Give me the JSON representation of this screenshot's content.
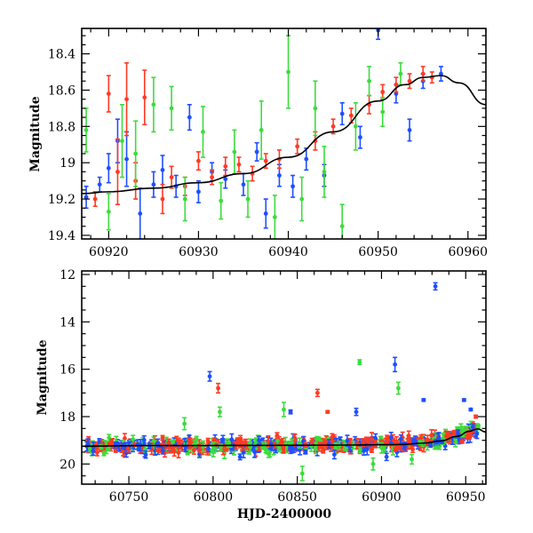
{
  "colors": {
    "blue": "#1f4fff",
    "red": "#ff3a24",
    "green": "#3cdc3c",
    "model": "#000000",
    "frame": "#000000"
  },
  "chart_data": [
    {
      "type": "scatter",
      "panel": "top",
      "title": "",
      "xlabel": "",
      "ylabel": "Magnitude",
      "xlim": [
        60917,
        60962
      ],
      "ylim": [
        19.42,
        18.26
      ],
      "y_inverted": true,
      "xticks": [
        60920,
        60930,
        60940,
        60950,
        60960
      ],
      "xtick_labels": [
        "60920",
        "60930",
        "60940",
        "60950",
        "60960"
      ],
      "yticks": [
        18.4,
        18.6,
        18.8,
        19,
        19.2,
        19.4
      ],
      "ytick_labels": [
        "18.4",
        "18.6",
        "18.8",
        "19",
        "19.2",
        "19.4"
      ],
      "model_curve": {
        "name": "model",
        "x": [
          60917,
          60920,
          60925,
          60930,
          60935,
          60940,
          60945,
          60950,
          60953,
          60955,
          60957,
          60959,
          60962
        ],
        "y": [
          19.17,
          19.16,
          19.14,
          19.11,
          19.06,
          18.97,
          18.83,
          18.66,
          18.57,
          18.53,
          18.52,
          18.56,
          18.68
        ]
      },
      "series": [
        {
          "name": "blue",
          "color": "blue",
          "points": [
            {
              "x": 60917.5,
              "y": 19.19,
              "err": 0.06
            },
            {
              "x": 60919.0,
              "y": 19.12,
              "err": 0.04
            },
            {
              "x": 60920.0,
              "y": 19.03,
              "err": 0.08
            },
            {
              "x": 60921.0,
              "y": 18.88,
              "err": 0.12
            },
            {
              "x": 60922.0,
              "y": 18.98,
              "err": 0.15
            },
            {
              "x": 60923.5,
              "y": 19.28,
              "err": 0.14
            },
            {
              "x": 60925.0,
              "y": 19.12,
              "err": 0.07
            },
            {
              "x": 60926.0,
              "y": 19.04,
              "err": 0.08
            },
            {
              "x": 60927.5,
              "y": 19.13,
              "err": 0.06
            },
            {
              "x": 60929.0,
              "y": 18.75,
              "err": 0.07
            },
            {
              "x": 60930.0,
              "y": 19.16,
              "err": 0.06
            },
            {
              "x": 60931.5,
              "y": 19.05,
              "err": 0.05
            },
            {
              "x": 60933.0,
              "y": 19.09,
              "err": 0.05
            },
            {
              "x": 60935.0,
              "y": 19.12,
              "err": 0.06
            },
            {
              "x": 60936.5,
              "y": 18.94,
              "err": 0.05
            },
            {
              "x": 60937.5,
              "y": 19.28,
              "err": 0.08
            },
            {
              "x": 60939.0,
              "y": 19.07,
              "err": 0.06
            },
            {
              "x": 60940.5,
              "y": 19.13,
              "err": 0.06
            },
            {
              "x": 60942.0,
              "y": 18.98,
              "err": 0.06
            },
            {
              "x": 60944.0,
              "y": 19.07,
              "err": 0.06
            },
            {
              "x": 60946.0,
              "y": 18.73,
              "err": 0.06
            },
            {
              "x": 60948.0,
              "y": 18.86,
              "err": 0.06
            },
            {
              "x": 60950.0,
              "y": 18.27,
              "err": 0.05
            },
            {
              "x": 60952.0,
              "y": 18.62,
              "err": 0.05
            },
            {
              "x": 60953.5,
              "y": 18.82,
              "err": 0.06
            },
            {
              "x": 60955.0,
              "y": 18.55,
              "err": 0.04
            },
            {
              "x": 60957.0,
              "y": 18.51,
              "err": 0.04
            }
          ]
        },
        {
          "name": "red",
          "color": "red",
          "points": [
            {
              "x": 60918.5,
              "y": 19.2,
              "err": 0.04
            },
            {
              "x": 60920.0,
              "y": 18.62,
              "err": 0.1
            },
            {
              "x": 60921.0,
              "y": 19.05,
              "err": 0.18
            },
            {
              "x": 60922.0,
              "y": 18.65,
              "err": 0.2
            },
            {
              "x": 60923.0,
              "y": 19.1,
              "err": 0.1
            },
            {
              "x": 60924.0,
              "y": 18.64,
              "err": 0.15
            },
            {
              "x": 60926.0,
              "y": 19.2,
              "err": 0.08
            },
            {
              "x": 60927.0,
              "y": 19.08,
              "err": 0.06
            },
            {
              "x": 60928.5,
              "y": 19.13,
              "err": 0.05
            },
            {
              "x": 60930.0,
              "y": 18.99,
              "err": 0.05
            },
            {
              "x": 60931.5,
              "y": 19.08,
              "err": 0.04
            },
            {
              "x": 60933.0,
              "y": 19.02,
              "err": 0.05
            },
            {
              "x": 60934.5,
              "y": 19.01,
              "err": 0.04
            },
            {
              "x": 60936.0,
              "y": 19.06,
              "err": 0.04
            },
            {
              "x": 60937.5,
              "y": 18.99,
              "err": 0.04
            },
            {
              "x": 60939.0,
              "y": 18.98,
              "err": 0.05
            },
            {
              "x": 60941.0,
              "y": 18.91,
              "err": 0.04
            },
            {
              "x": 60943.0,
              "y": 18.88,
              "err": 0.05
            },
            {
              "x": 60945.0,
              "y": 18.8,
              "err": 0.04
            },
            {
              "x": 60947.0,
              "y": 18.74,
              "err": 0.04
            },
            {
              "x": 60949.0,
              "y": 18.68,
              "err": 0.05
            },
            {
              "x": 60950.5,
              "y": 18.61,
              "err": 0.04
            },
            {
              "x": 60952.0,
              "y": 18.57,
              "err": 0.04
            },
            {
              "x": 60953.5,
              "y": 18.55,
              "err": 0.04
            },
            {
              "x": 60955.0,
              "y": 18.51,
              "err": 0.04
            },
            {
              "x": 60956.0,
              "y": 18.53,
              "err": 0.03
            }
          ]
        },
        {
          "name": "green",
          "color": "green",
          "points": [
            {
              "x": 60917.5,
              "y": 18.82,
              "err": 0.12
            },
            {
              "x": 60920.0,
              "y": 19.27,
              "err": 0.1
            },
            {
              "x": 60921.5,
              "y": 18.88,
              "err": 0.2
            },
            {
              "x": 60923.0,
              "y": 18.95,
              "err": 0.18
            },
            {
              "x": 60925.0,
              "y": 18.68,
              "err": 0.15
            },
            {
              "x": 60927.0,
              "y": 18.7,
              "err": 0.12
            },
            {
              "x": 60928.5,
              "y": 19.2,
              "err": 0.12
            },
            {
              "x": 60930.5,
              "y": 18.83,
              "err": 0.14
            },
            {
              "x": 60932.5,
              "y": 19.21,
              "err": 0.1
            },
            {
              "x": 60934.0,
              "y": 18.94,
              "err": 0.12
            },
            {
              "x": 60935.5,
              "y": 19.2,
              "err": 0.1
            },
            {
              "x": 60937.0,
              "y": 18.82,
              "err": 0.16
            },
            {
              "x": 60938.5,
              "y": 19.3,
              "err": 0.12
            },
            {
              "x": 60940.0,
              "y": 18.5,
              "err": 0.2
            },
            {
              "x": 60941.5,
              "y": 19.2,
              "err": 0.12
            },
            {
              "x": 60943.0,
              "y": 18.7,
              "err": 0.15
            },
            {
              "x": 60944.0,
              "y": 19.05,
              "err": 0.14
            },
            {
              "x": 60946.0,
              "y": 19.35,
              "err": 0.12
            },
            {
              "x": 60947.5,
              "y": 18.8,
              "err": 0.13
            },
            {
              "x": 60949.0,
              "y": 18.55,
              "err": 0.08
            },
            {
              "x": 60950.5,
              "y": 18.72,
              "err": 0.08
            },
            {
              "x": 60952.5,
              "y": 18.51,
              "err": 0.06
            }
          ]
        }
      ]
    },
    {
      "type": "scatter",
      "panel": "bottom",
      "title": "",
      "xlabel": "HJD-2400000",
      "ylabel": "Magnitude",
      "xlim": [
        60722,
        60962
      ],
      "ylim": [
        20.85,
        11.85
      ],
      "y_inverted": true,
      "xticks": [
        60750,
        60800,
        60850,
        60900,
        60950
      ],
      "xtick_labels": [
        "60750",
        "60800",
        "60850",
        "60900",
        "60950"
      ],
      "yticks": [
        12,
        14,
        16,
        18,
        20
      ],
      "ytick_labels": [
        "12",
        "14",
        "16",
        "18",
        "20"
      ],
      "model_curve": {
        "name": "model",
        "x": [
          60722,
          60760,
          60800,
          60840,
          60880,
          60910,
          60925,
          60935,
          60945,
          60952,
          60957,
          60962
        ],
        "y": [
          19.25,
          19.22,
          19.22,
          19.21,
          19.2,
          19.18,
          19.12,
          19.03,
          18.83,
          18.62,
          18.52,
          18.65
        ]
      },
      "series": [
        {
          "name": "blue",
          "color": "blue",
          "points": [
            {
              "x": 60932.0,
              "y": 12.5,
              "err": 0.15
            },
            {
              "x": 60798.0,
              "y": 16.3,
              "err": 0.2
            },
            {
              "x": 60908.0,
              "y": 15.8,
              "err": 0.3
            },
            {
              "x": 60925.0,
              "y": 17.3,
              "err": 0.05
            },
            {
              "x": 60949.0,
              "y": 17.3,
              "err": 0.05
            },
            {
              "x": 60953.0,
              "y": 17.7,
              "err": 0.05
            },
            {
              "x": 60885.0,
              "y": 17.8,
              "err": 0.15
            },
            {
              "x": 60846.0,
              "y": 17.8,
              "err": 0.08
            },
            {
              "x": 60760.0,
              "y": 19.6,
              "err": 0.15
            },
            {
              "x": 60816.0,
              "y": 19.7,
              "err": 0.12
            },
            {
              "x": 60872.0,
              "y": 19.6,
              "err": 0.18
            },
            {
              "x": 60903.0,
              "y": 19.7,
              "err": 0.15
            }
          ]
        },
        {
          "name": "red",
          "color": "red",
          "points": [
            {
              "x": 60803.0,
              "y": 16.8,
              "err": 0.2
            },
            {
              "x": 60862.0,
              "y": 17.0,
              "err": 0.15
            },
            {
              "x": 60868.0,
              "y": 17.8,
              "err": 0.05
            },
            {
              "x": 60956.0,
              "y": 18.0,
              "err": 0.06
            },
            {
              "x": 60770.0,
              "y": 18.9,
              "err": 0.1
            },
            {
              "x": 60838.0,
              "y": 18.8,
              "err": 0.12
            }
          ]
        },
        {
          "name": "green",
          "color": "green",
          "points": [
            {
              "x": 60887.0,
              "y": 15.7,
              "err": 0.1
            },
            {
              "x": 60910.0,
              "y": 16.8,
              "err": 0.25
            },
            {
              "x": 60804.0,
              "y": 17.8,
              "err": 0.2
            },
            {
              "x": 60842.0,
              "y": 17.7,
              "err": 0.3
            },
            {
              "x": 60783.0,
              "y": 18.3,
              "err": 0.25
            },
            {
              "x": 60853.0,
              "y": 20.4,
              "err": 0.3
            },
            {
              "x": 60895.0,
              "y": 20.0,
              "err": 0.25
            },
            {
              "x": 60918.0,
              "y": 19.8,
              "err": 0.2
            }
          ]
        }
      ],
      "dense_band": {
        "description": "continuous scatter of red, blue and green points with error bars along the quiescent level",
        "x_range": [
          60725,
          60958
        ],
        "center": 19.2,
        "spread": 0.35
      }
    }
  ]
}
